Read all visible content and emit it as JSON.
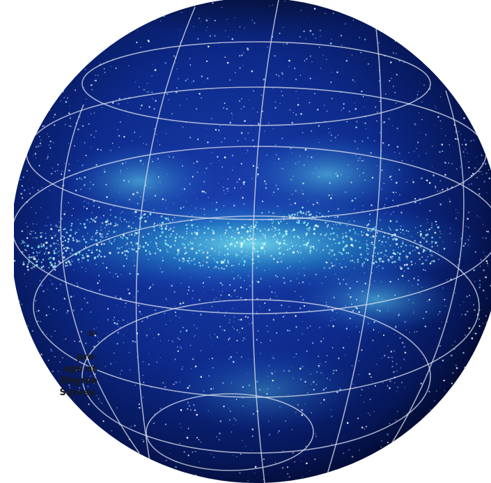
{
  "caption": {
    "lines": [
      "s-",
      "",
      "pro-",
      "age as",
      "Degree",
      "Survey."
    ]
  },
  "colors": {
    "background": "#ffffff",
    "sphere_deep": "#040a2e",
    "sphere_mid": "#0d2a8a",
    "filament": "#4fd6e8",
    "grid": "#d9dde8",
    "caption": "#1a1a1a"
  }
}
